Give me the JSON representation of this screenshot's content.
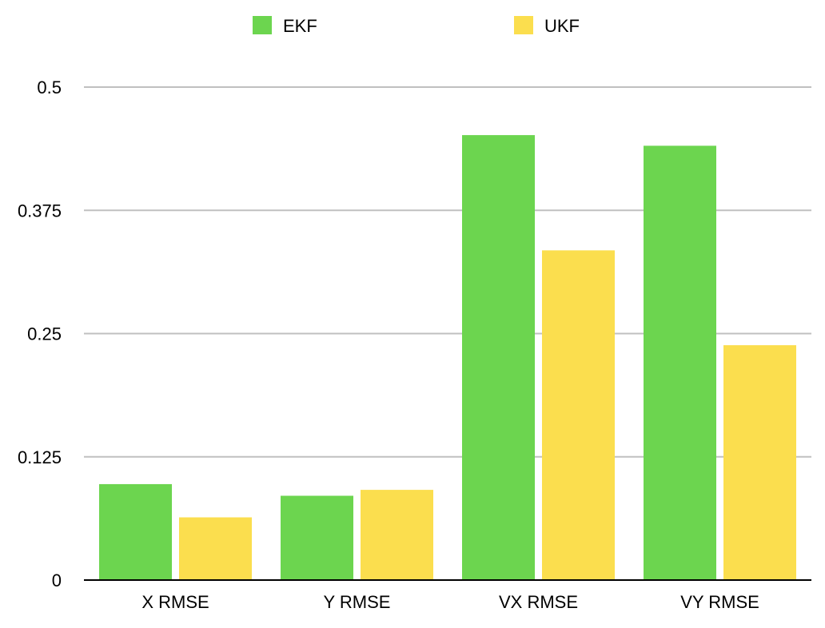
{
  "chart_data": {
    "type": "bar",
    "categories": [
      "X RMSE",
      "Y RMSE",
      "VX RMSE",
      "VY RMSE"
    ],
    "series": [
      {
        "name": "EKF",
        "color": "#6CD54F",
        "values": [
          0.0973,
          0.0855,
          0.4513,
          0.4405
        ]
      },
      {
        "name": "UKF",
        "color": "#FBDE4E",
        "values": [
          0.0636,
          0.0915,
          0.3344,
          0.2382
        ]
      }
    ],
    "title": "",
    "xlabel": "",
    "ylabel": "",
    "ylim": [
      0,
      0.5
    ],
    "yticks": [
      {
        "value": 0,
        "label": "0"
      },
      {
        "value": 0.125,
        "label": "0.125"
      },
      {
        "value": 0.25,
        "label": "0.25"
      },
      {
        "value": 0.375,
        "label": "0.375"
      },
      {
        "value": 0.5,
        "label": "0.5"
      }
    ],
    "grid": true,
    "legend": "top-center",
    "gridline_color": "#c0c0c0",
    "axis_color": "#000000"
  }
}
